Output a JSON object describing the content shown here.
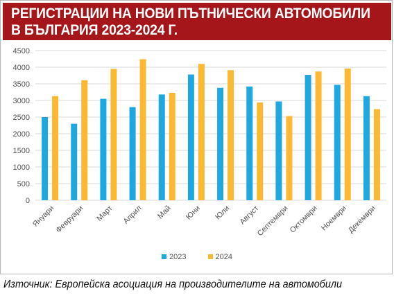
{
  "title": {
    "line1": "РЕГИСТРАЦИИ НА НОВИ ПЪТНИЧЕСКИ АВТОМОБИЛИ",
    "line2": "В БЪЛГАРИЯ 2023-2024 Г."
  },
  "source": "Източник: Европейска асоциация на производителите на автомобили",
  "colors": {
    "banner": "#a5161a",
    "series_2023": "#1fa8e0",
    "series_2024": "#fbb832",
    "grid": "#d9d9d9"
  },
  "chart_data": {
    "type": "bar",
    "categories": [
      "Януари",
      "Февруари",
      "Март",
      "Април",
      "Май",
      "Юни",
      "Юли",
      "Август",
      "Септември",
      "Октомври",
      "Ноември",
      "Декември"
    ],
    "series": [
      {
        "name": "2023",
        "color": "#1fa8e0",
        "values": [
          2500,
          2300,
          3050,
          2800,
          3180,
          3780,
          3380,
          3420,
          2970,
          3770,
          3470,
          3130
        ]
      },
      {
        "name": "2024",
        "color": "#fbb832",
        "values": [
          3130,
          3610,
          3950,
          4240,
          3230,
          4100,
          3910,
          2940,
          2530,
          3870,
          3960,
          2740
        ]
      }
    ],
    "yticks": [
      0,
      500,
      1000,
      1500,
      2000,
      2500,
      3000,
      3500,
      4000,
      4500
    ],
    "ylim": [
      0,
      4500
    ],
    "grid": true,
    "legend": "bottom"
  }
}
